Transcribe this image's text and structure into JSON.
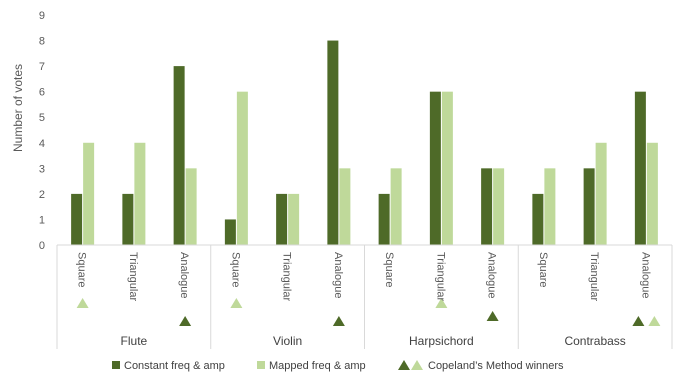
{
  "chart_data": {
    "type": "bar",
    "ylabel": "Number of votes",
    "ylim": [
      0,
      9
    ],
    "yticks": [
      0,
      1,
      2,
      3,
      4,
      5,
      6,
      7,
      8,
      9
    ],
    "grid": false,
    "legend_position": "bottom",
    "colors": {
      "constant": "#4e6a28",
      "mapped": "#bfd99a"
    },
    "series": [
      {
        "name": "Constant freq & amp",
        "color": "#4e6a28"
      },
      {
        "name": "Mapped freq & amp",
        "color": "#bfd99a"
      }
    ],
    "winner_legend": "Copeland’s Method winners",
    "groups": [
      {
        "name": "Flute",
        "categories": [
          "Square",
          "Triangular",
          "Analogue"
        ],
        "constant": [
          2,
          2,
          7
        ],
        "mapped": [
          4,
          4,
          3
        ],
        "winners": [
          {
            "category": "Square",
            "series": "mapped"
          },
          {
            "category": "Analogue",
            "series": "constant"
          }
        ]
      },
      {
        "name": "Violin",
        "categories": [
          "Square",
          "Triangular",
          "Analogue"
        ],
        "constant": [
          1,
          2,
          8
        ],
        "mapped": [
          6,
          2,
          3
        ],
        "winners": [
          {
            "category": "Square",
            "series": "mapped"
          },
          {
            "category": "Analogue",
            "series": "constant"
          }
        ]
      },
      {
        "name": "Harpsichord",
        "categories": [
          "Square",
          "Triangular",
          "Analogue"
        ],
        "constant": [
          2,
          6,
          3
        ],
        "mapped": [
          3,
          6,
          3
        ],
        "winners": [
          {
            "category": "Triangular",
            "series": "mapped"
          },
          {
            "category": "Analogue",
            "series": "constant"
          }
        ]
      },
      {
        "name": "Contrabass",
        "categories": [
          "Square",
          "Triangular",
          "Analogue"
        ],
        "constant": [
          2,
          3,
          6
        ],
        "mapped": [
          3,
          4,
          4
        ],
        "winners": [
          {
            "category": "Analogue",
            "series": "constant"
          },
          {
            "category": "Analogue",
            "series": "mapped"
          }
        ]
      }
    ]
  }
}
